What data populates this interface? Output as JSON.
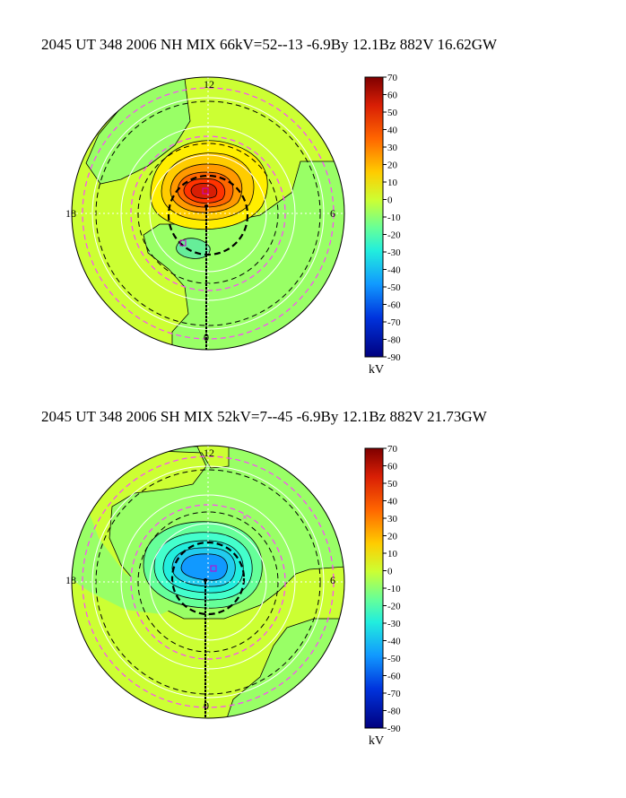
{
  "panels": [
    {
      "id": "nh",
      "title": "2045 UT 348 2006 NH MIX 66kV=52--13 -6.9By 12.1Bz 882V 16.62GW",
      "mlt_labels": {
        "top": "12",
        "left": "18",
        "right": "6",
        "bottom": "0"
      },
      "colorbar_ticks": [
        "70",
        "60",
        "50",
        "40",
        "30",
        "20",
        "10",
        "0",
        "-10",
        "-20",
        "-30",
        "-40",
        "-50",
        "-60",
        "-70",
        "-80",
        "-90"
      ],
      "colorbar_unit": "kV"
    },
    {
      "id": "sh",
      "title": "2045 UT 348 2006 SH MIX 52kV=7--45 -6.9By 12.1Bz 882V 21.73GW",
      "mlt_labels": {
        "top": "12",
        "left": "18",
        "right": "6",
        "bottom": "0"
      },
      "colorbar_ticks": [
        "70",
        "60",
        "50",
        "40",
        "30",
        "20",
        "10",
        "0",
        "-10",
        "-20",
        "-30",
        "-40",
        "-50",
        "-60",
        "-70",
        "-80",
        "-90"
      ],
      "colorbar_unit": "kV"
    }
  ],
  "colors": {
    "background_potential": "#ccff33",
    "negative_region": "#99ff66",
    "red_peak": "#d81e05",
    "cyan_core": "#22bbee",
    "reference_circle": "#ff44ff"
  }
}
